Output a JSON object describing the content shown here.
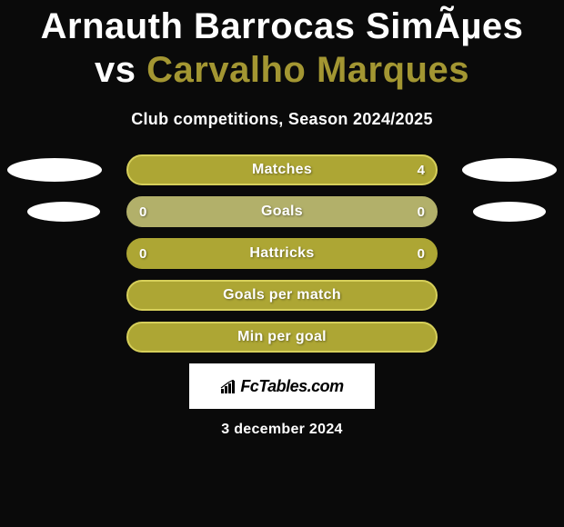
{
  "title": {
    "player1": "Arnauth Barrocas SimÃµes",
    "vs": "vs",
    "player2": "Carvalho Marques"
  },
  "subtitle": "Club competitions, Season 2024/2025",
  "colors": {
    "primary": "#ada634",
    "secondary": "#b2b06a",
    "pill": "#ffffff",
    "background": "#0a0a0a",
    "text": "#ffffff",
    "title_p2": "#a39632"
  },
  "rows": [
    {
      "label": "Matches",
      "left_val": "",
      "right_val": "4",
      "bar_bg": "#ada634",
      "border": "#d6cf5a",
      "show_left_pill": true,
      "show_right_pill": true,
      "pill_size": "normal"
    },
    {
      "label": "Goals",
      "left_val": "0",
      "right_val": "0",
      "bar_bg": "#b2b06a",
      "border": "#b2b06a",
      "show_left_pill": true,
      "show_right_pill": true,
      "pill_size": "small"
    },
    {
      "label": "Hattricks",
      "left_val": "0",
      "right_val": "0",
      "bar_bg": "#ada634",
      "border": "#ada634",
      "show_left_pill": false,
      "show_right_pill": false,
      "pill_size": "normal"
    },
    {
      "label": "Goals per match",
      "left_val": "",
      "right_val": "",
      "bar_bg": "#ada634",
      "border": "#d6cf5a",
      "show_left_pill": false,
      "show_right_pill": false,
      "pill_size": "normal"
    },
    {
      "label": "Min per goal",
      "left_val": "",
      "right_val": "",
      "bar_bg": "#ada634",
      "border": "#d6cf5a",
      "show_left_pill": false,
      "show_right_pill": false,
      "pill_size": "normal"
    }
  ],
  "logo": {
    "text": "FcTables.com"
  },
  "date": "3 december 2024"
}
